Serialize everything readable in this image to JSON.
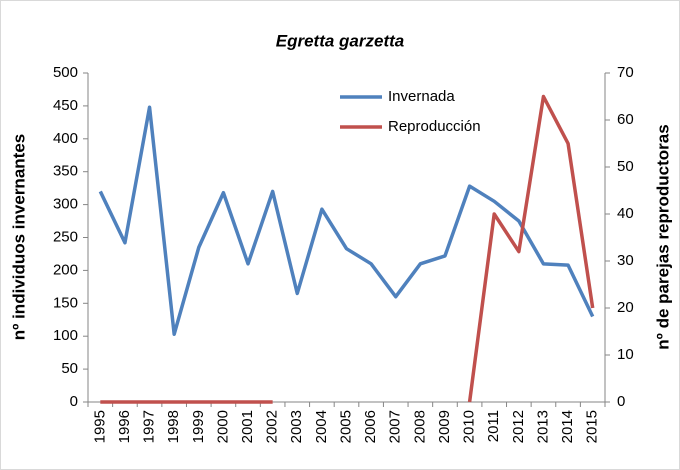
{
  "chart_data": {
    "type": "line",
    "title": "Egretta garzetta",
    "y_label": "nº individuos invernantes",
    "y2_label": "nº de parejas reproductoras",
    "categories": [
      "1995",
      "1996",
      "1997",
      "1998",
      "1999",
      "2000",
      "2001",
      "2002",
      "2003",
      "2004",
      "2005",
      "2006",
      "2007",
      "2008",
      "2009",
      "2010",
      "2011",
      "2012",
      "2013",
      "2014",
      "2015"
    ],
    "series": [
      {
        "name": "Invernada",
        "color": "#4f81bd",
        "values": [
          320,
          242,
          448,
          103,
          235,
          318,
          210,
          320,
          165,
          293,
          233,
          210,
          160,
          210,
          222,
          328,
          305,
          275,
          210,
          208,
          130
        ]
      },
      {
        "name": "Reproducción",
        "color": "#c0504d",
        "axis": "y2",
        "values": [
          0,
          0,
          0,
          0,
          0,
          0,
          0,
          0,
          null,
          null,
          null,
          null,
          null,
          null,
          null,
          0,
          40,
          32,
          65,
          55,
          20
        ]
      }
    ],
    "ylim": [
      0,
      500
    ],
    "yticks": [
      0,
      50,
      100,
      150,
      200,
      250,
      300,
      350,
      400,
      450,
      500
    ],
    "y2lim": [
      0,
      70
    ],
    "y2ticks": [
      0,
      10,
      20,
      30,
      40,
      50,
      60,
      70
    ],
    "grid": false,
    "legend": "top"
  }
}
